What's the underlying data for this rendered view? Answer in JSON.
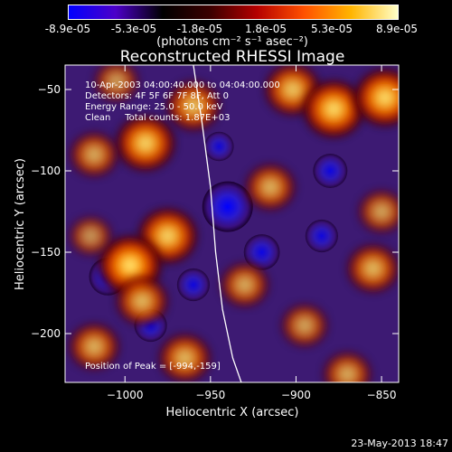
{
  "colorbar": {
    "tick_labels": [
      "-8.9e-05",
      "-5.3e-05",
      "-1.8e-05",
      "1.8e-05",
      "5.3e-05",
      "8.9e-05"
    ],
    "unit_label": "(photons cm⁻² s⁻¹ asec⁻²)",
    "palette_stops": [
      "#0000ff",
      "#4c00c8",
      "#000000",
      "#3a0000",
      "#b40000",
      "#ff5000",
      "#ffb400",
      "#ffffc8"
    ]
  },
  "annotations": {
    "line1": "10-Apr-2003 04:00:40.000 to 04:04:00.000",
    "line2": "Detectors: 4F 5F 6F 7F 8F, Att 0",
    "line3": "Energy Range: 25.0 - 50.0 keV",
    "line4": "Clean     Total counts: 1.87E+03",
    "peak": "Position of Peak = [-994,-159]"
  },
  "footer": {
    "timestamp": "23-May-2013 18:47"
  },
  "chart_data": {
    "type": "heatmap",
    "title": "Reconstructed RHESSI Image",
    "xlabel": "Heliocentric X (arcsec)",
    "ylabel": "Heliocentric Y (arcsec)",
    "xlim": [
      -1035,
      -840
    ],
    "ylim": [
      -230,
      -35
    ],
    "x_ticks": [
      {
        "value": -1000,
        "label": "−1000"
      },
      {
        "value": -950,
        "label": "−950"
      },
      {
        "value": -900,
        "label": "−900"
      },
      {
        "value": -850,
        "label": "−850"
      }
    ],
    "y_ticks": [
      {
        "value": -50,
        "label": "−50"
      },
      {
        "value": -100,
        "label": "−100"
      },
      {
        "value": -150,
        "label": "−150"
      },
      {
        "value": -200,
        "label": "−200"
      }
    ],
    "value_range": [
      -8.9e-05,
      8.9e-05
    ],
    "limb_curve": [
      [
        -960,
        -35
      ],
      [
        -955,
        -70
      ],
      [
        -950,
        -110
      ],
      [
        -947,
        -150
      ],
      [
        -943,
        -185
      ],
      [
        -937,
        -215
      ],
      [
        -932,
        -230
      ]
    ],
    "bright_sources": [
      {
        "x": -988,
        "y": -83,
        "level": 0.9
      },
      {
        "x": -975,
        "y": -140,
        "level": 0.9
      },
      {
        "x": -997,
        "y": -158,
        "level": 1.0
      },
      {
        "x": -990,
        "y": -180,
        "level": 0.7
      },
      {
        "x": -1020,
        "y": -140,
        "level": 0.45
      },
      {
        "x": -1018,
        "y": -90,
        "level": 0.6
      },
      {
        "x": -1018,
        "y": -208,
        "level": 0.65
      },
      {
        "x": -965,
        "y": -215,
        "level": 0.7
      },
      {
        "x": -930,
        "y": -170,
        "level": 0.6
      },
      {
        "x": -915,
        "y": -110,
        "level": 0.65
      },
      {
        "x": -902,
        "y": -50,
        "level": 0.8
      },
      {
        "x": -878,
        "y": -62,
        "level": 0.95
      },
      {
        "x": -848,
        "y": -55,
        "level": 0.95
      },
      {
        "x": -855,
        "y": -160,
        "level": 0.7
      },
      {
        "x": -850,
        "y": -125,
        "level": 0.55
      },
      {
        "x": -895,
        "y": -195,
        "level": 0.55
      },
      {
        "x": -870,
        "y": -225,
        "level": 0.6
      },
      {
        "x": -960,
        "y": -60,
        "level": 0.75
      },
      {
        "x": -1005,
        "y": -45,
        "level": 0.5
      }
    ],
    "dark_sources": [
      {
        "x": -940,
        "y": -122,
        "level": 1.0
      },
      {
        "x": -920,
        "y": -150,
        "level": 0.55
      },
      {
        "x": -1010,
        "y": -165,
        "level": 0.6
      },
      {
        "x": -985,
        "y": -195,
        "level": 0.45
      },
      {
        "x": -880,
        "y": -100,
        "level": 0.5
      },
      {
        "x": -885,
        "y": -140,
        "level": 0.45
      },
      {
        "x": -945,
        "y": -85,
        "level": 0.35
      },
      {
        "x": -960,
        "y": -170,
        "level": 0.45
      }
    ]
  }
}
